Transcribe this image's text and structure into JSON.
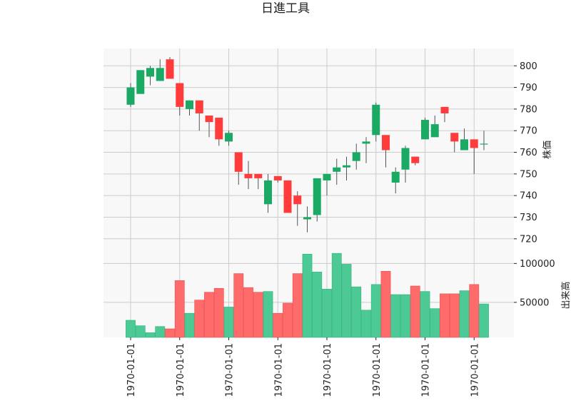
{
  "chart_data": {
    "type": "candlestick",
    "title": "日進工具",
    "price_panel": {
      "ylabel": "株価",
      "ylim": [
        714,
        808
      ],
      "yticks": [
        720,
        730,
        740,
        750,
        760,
        770,
        780,
        790,
        800
      ],
      "ytick_labels": [
        "720",
        "730",
        "740",
        "750",
        "760",
        "770",
        "780",
        "790",
        "800"
      ],
      "grid": true
    },
    "volume_panel": {
      "ylabel": "出来高",
      "ylim": [
        5000,
        115000
      ],
      "yticks": [
        50000,
        100000
      ],
      "ytick_labels": [
        "50000",
        "100000"
      ],
      "grid": true
    },
    "x_tick_positions": [
      0,
      5,
      10,
      15,
      20,
      25,
      30,
      35
    ],
    "x_tick_labels": [
      "1970-01-01",
      "1970-01-01",
      "1970-01-01",
      "1970-01-01",
      "1970-01-01",
      "1970-01-01",
      "1970-01-01",
      "1970-01-01"
    ],
    "colors": {
      "up": "#1aaa64",
      "down": "#ff3b3b",
      "up_volume": "#4cc994",
      "down_volume": "#ff6a6a"
    },
    "candles": [
      {
        "open": 782,
        "high": 792,
        "low": 781,
        "close": 790
      },
      {
        "open": 787,
        "high": 798,
        "low": 787,
        "close": 798
      },
      {
        "open": 795,
        "high": 800,
        "low": 791,
        "close": 799
      },
      {
        "open": 793,
        "high": 803,
        "low": 793,
        "close": 799
      },
      {
        "open": 803,
        "high": 804,
        "low": 794,
        "close": 794
      },
      {
        "open": 792,
        "high": 792,
        "low": 777,
        "close": 781
      },
      {
        "open": 780,
        "high": 784,
        "low": 777,
        "close": 784
      },
      {
        "open": 784,
        "high": 784,
        "low": 770,
        "close": 778
      },
      {
        "open": 777,
        "high": 777,
        "low": 767,
        "close": 774
      },
      {
        "open": 776,
        "high": 776,
        "low": 763,
        "close": 766
      },
      {
        "open": 765,
        "high": 770,
        "low": 763,
        "close": 769
      },
      {
        "open": 760,
        "high": 760,
        "low": 745,
        "close": 751
      },
      {
        "open": 750,
        "high": 756,
        "low": 743,
        "close": 748
      },
      {
        "open": 750,
        "high": 750,
        "low": 743,
        "close": 748
      },
      {
        "open": 736,
        "high": 750,
        "low": 732,
        "close": 747
      },
      {
        "open": 749,
        "high": 749,
        "low": 746,
        "close": 747
      },
      {
        "open": 747,
        "high": 747,
        "low": 732,
        "close": 732
      },
      {
        "open": 740,
        "high": 742,
        "low": 726,
        "close": 736
      },
      {
        "open": 729,
        "high": 735,
        "low": 723,
        "close": 730
      },
      {
        "open": 731,
        "high": 748,
        "low": 728,
        "close": 748
      },
      {
        "open": 747,
        "high": 750,
        "low": 740,
        "close": 750
      },
      {
        "open": 751,
        "high": 757,
        "low": 745,
        "close": 753
      },
      {
        "open": 753,
        "high": 758,
        "low": 747,
        "close": 754
      },
      {
        "open": 756,
        "high": 764,
        "low": 752,
        "close": 760
      },
      {
        "open": 764,
        "high": 767,
        "low": 755,
        "close": 765
      },
      {
        "open": 768,
        "high": 783,
        "low": 765,
        "close": 782
      },
      {
        "open": 768,
        "high": 768,
        "low": 753,
        "close": 761
      },
      {
        "open": 746,
        "high": 753,
        "low": 741,
        "close": 751
      },
      {
        "open": 752,
        "high": 763,
        "low": 746,
        "close": 762
      },
      {
        "open": 758,
        "high": 758,
        "low": 754,
        "close": 755
      },
      {
        "open": 766,
        "high": 776,
        "low": 766,
        "close": 775
      },
      {
        "open": 767,
        "high": 777,
        "low": 767,
        "close": 773
      },
      {
        "open": 781,
        "high": 781,
        "low": 774,
        "close": 778
      },
      {
        "open": 769,
        "high": 769,
        "low": 760,
        "close": 765
      },
      {
        "open": 761,
        "high": 771,
        "low": 761,
        "close": 766
      },
      {
        "open": 766,
        "high": 766,
        "low": 750,
        "close": 762
      },
      {
        "open": 764,
        "high": 770,
        "low": 761,
        "close": 764
      }
    ],
    "volumes": [
      27000,
      20000,
      11000,
      19000,
      16000,
      78000,
      36000,
      53000,
      63000,
      68000,
      44000,
      87000,
      69000,
      63000,
      64000,
      36000,
      49000,
      87000,
      112000,
      89000,
      67000,
      113000,
      99000,
      70000,
      40000,
      73000,
      90000,
      60000,
      60000,
      71000,
      64000,
      42000,
      61000,
      61000,
      65000,
      73000,
      48000
    ]
  }
}
